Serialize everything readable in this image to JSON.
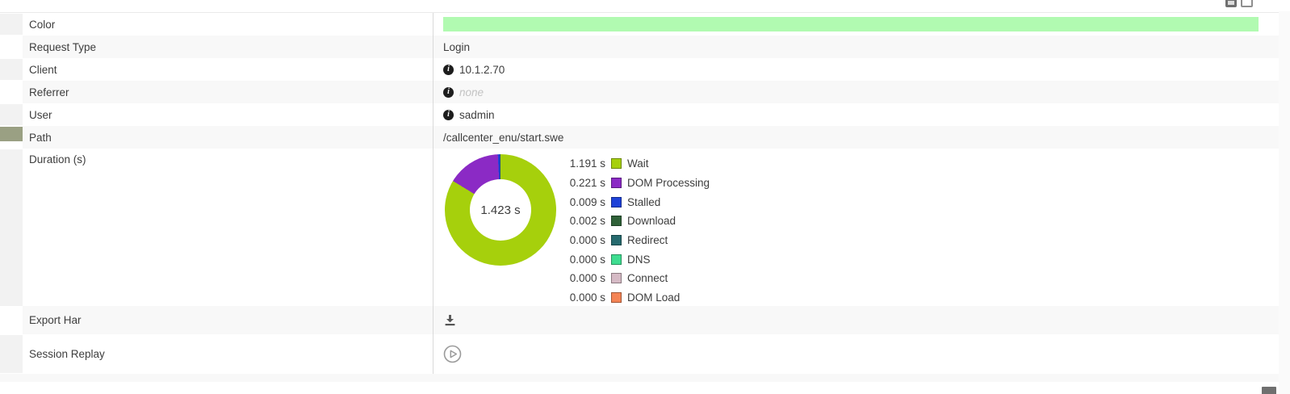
{
  "details": {
    "rows": [
      {
        "label": "Color",
        "kind": "color",
        "bar_color": "#b1fab1"
      },
      {
        "label": "Request Type",
        "kind": "text",
        "value": "Login"
      },
      {
        "label": "Client",
        "kind": "info",
        "value": "10.1.2.70"
      },
      {
        "label": "Referrer",
        "kind": "info-muted",
        "value": "none"
      },
      {
        "label": "User",
        "kind": "info",
        "value": "sadmin"
      },
      {
        "label": "Path",
        "kind": "text",
        "value": "/callcenter_enu/start.swe",
        "marker_color": "#9aa083"
      },
      {
        "label": "Duration (s)",
        "kind": "chart"
      },
      {
        "label": "Export Har",
        "kind": "download",
        "icon": "download-icon"
      },
      {
        "label": "Session Replay",
        "kind": "play",
        "icon": "play-circle-icon"
      }
    ]
  },
  "chart_data": {
    "type": "pie",
    "donut": true,
    "title": "Duration (s)",
    "center_label": "1.423 s",
    "total_seconds": 1.423,
    "unit": "s",
    "legend_position": "right",
    "segments": [
      {
        "label": "Wait",
        "value": 1.191,
        "display": "1.191 s",
        "color": "#a6d00c"
      },
      {
        "label": "DOM Processing",
        "value": 0.221,
        "display": "0.221 s",
        "color": "#8b2ac5"
      },
      {
        "label": "Stalled",
        "value": 0.009,
        "display": "0.009 s",
        "color": "#1e42d8"
      },
      {
        "label": "Download",
        "value": 0.002,
        "display": "0.002 s",
        "color": "#2f6138"
      },
      {
        "label": "Redirect",
        "value": 0.0,
        "display": "0.000 s",
        "color": "#266a6e"
      },
      {
        "label": "DNS",
        "value": 0.0,
        "display": "0.000 s",
        "color": "#3edd90"
      },
      {
        "label": "Connect",
        "value": 0.0,
        "display": "0.000 s",
        "color": "#d6bac5"
      },
      {
        "label": "DOM Load",
        "value": 0.0,
        "display": "0.000 s",
        "color": "#f48354"
      }
    ]
  },
  "icons": {
    "info": "i",
    "top_right": [
      "screenshot-icon",
      "window-icon"
    ],
    "bottom_right": "panel-icon"
  }
}
